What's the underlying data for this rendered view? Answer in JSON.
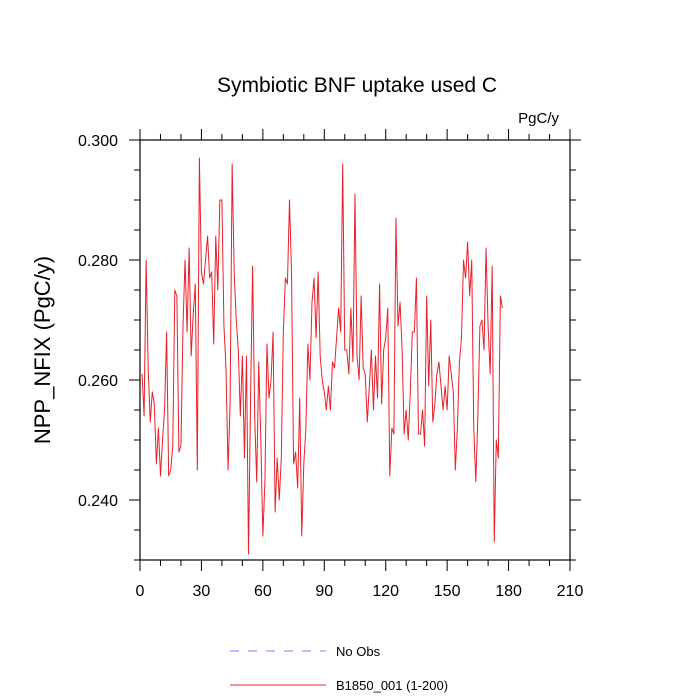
{
  "chart_data": {
    "type": "line",
    "title": "Symbiotic BNF uptake used C",
    "units": "PgC/y",
    "ylabel": "NPP_NFIX  (PgC/y)",
    "xlabel": "",
    "xlim": [
      0,
      210
    ],
    "ylim": [
      0.23,
      0.3
    ],
    "xticks": [
      0,
      30,
      60,
      90,
      120,
      150,
      180,
      210
    ],
    "yticks": [
      0.24,
      0.26,
      0.28,
      0.3
    ],
    "ytick_labels": [
      "0.240",
      "0.260",
      "0.280",
      "0.300"
    ],
    "grid": false,
    "legend": {
      "placement": "bottom-center",
      "entries": [
        {
          "label": "No Obs",
          "color": "#7b7bff",
          "style": "dashed"
        },
        {
          "label": "B1850_001 (1-200)",
          "color": "#e8202a",
          "style": "solid"
        }
      ]
    },
    "series": [
      {
        "name": "B1850_001 (1-200)",
        "color": "#e8202a",
        "x_start": 1,
        "values": [
          0.261,
          0.254,
          0.28,
          0.262,
          0.253,
          0.258,
          0.256,
          0.246,
          0.252,
          0.244,
          0.25,
          0.255,
          0.268,
          0.244,
          0.245,
          0.249,
          0.275,
          0.274,
          0.248,
          0.249,
          0.269,
          0.28,
          0.268,
          0.282,
          0.264,
          0.271,
          0.276,
          0.245,
          0.297,
          0.278,
          0.276,
          0.28,
          0.284,
          0.277,
          0.278,
          0.266,
          0.284,
          0.275,
          0.29,
          0.29,
          0.269,
          0.262,
          0.245,
          0.256,
          0.296,
          0.278,
          0.27,
          0.265,
          0.254,
          0.264,
          0.247,
          0.264,
          0.231,
          0.257,
          0.279,
          0.254,
          0.243,
          0.263,
          0.25,
          0.234,
          0.243,
          0.266,
          0.257,
          0.26,
          0.268,
          0.238,
          0.247,
          0.24,
          0.247,
          0.268,
          0.277,
          0.276,
          0.29,
          0.278,
          0.246,
          0.248,
          0.242,
          0.257,
          0.234,
          0.246,
          0.252,
          0.266,
          0.26,
          0.273,
          0.277,
          0.267,
          0.278,
          0.264,
          0.26,
          0.258,
          0.255,
          0.259,
          0.255,
          0.263,
          0.262,
          0.267,
          0.272,
          0.268,
          0.296,
          0.265,
          0.265,
          0.261,
          0.272,
          0.263,
          0.291,
          0.264,
          0.26,
          0.274,
          0.262,
          0.261,
          0.253,
          0.259,
          0.265,
          0.255,
          0.264,
          0.257,
          0.276,
          0.256,
          0.265,
          0.267,
          0.272,
          0.244,
          0.252,
          0.251,
          0.287,
          0.269,
          0.273,
          0.265,
          0.251,
          0.255,
          0.25,
          0.258,
          0.268,
          0.268,
          0.277,
          0.251,
          0.251,
          0.255,
          0.249,
          0.274,
          0.259,
          0.27,
          0.253,
          0.256,
          0.261,
          0.263,
          0.259,
          0.255,
          0.259,
          0.255,
          0.264,
          0.261,
          0.258,
          0.245,
          0.252,
          0.263,
          0.267,
          0.28,
          0.277,
          0.283,
          0.274,
          0.28,
          0.252,
          0.243,
          0.254,
          0.269,
          0.27,
          0.265,
          0.282,
          0.269,
          0.261,
          0.279,
          0.233,
          0.25,
          0.247,
          0.274,
          0.272
        ]
      }
    ]
  }
}
